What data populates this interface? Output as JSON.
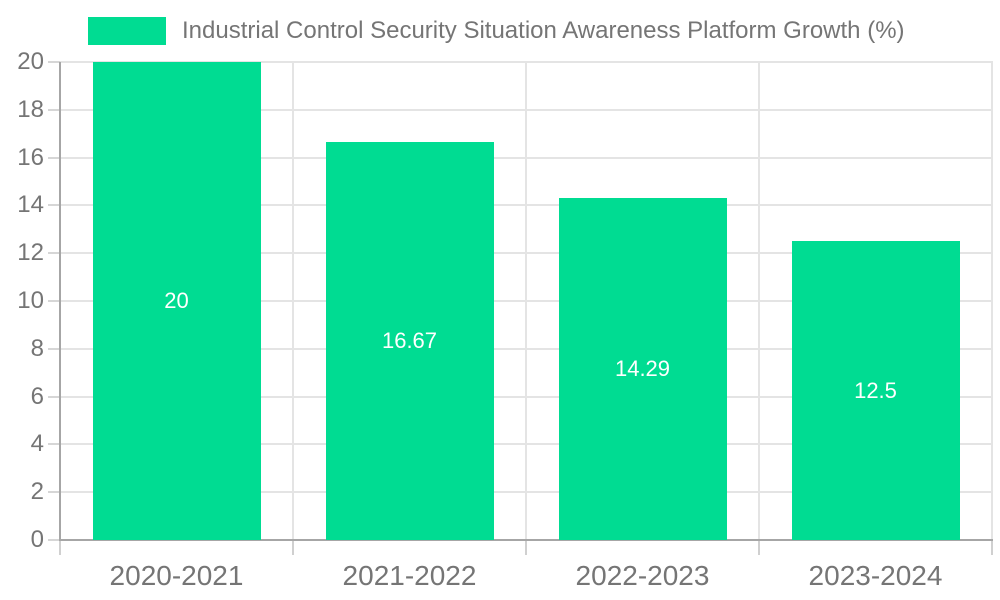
{
  "legend": {
    "label": "Industrial Control Security Situation Awareness Platform Growth (%)",
    "swatch_color": "#00dc92"
  },
  "chart_data": {
    "type": "bar",
    "title": "",
    "xlabel": "",
    "ylabel": "",
    "categories": [
      "2020-2021",
      "2021-2022",
      "2022-2023",
      "2023-2024"
    ],
    "series": [
      {
        "name": "Industrial Control Security Situation Awareness Platform Growth (%)",
        "values": [
          20,
          16.67,
          14.29,
          12.5
        ],
        "data_labels": [
          "20",
          "16.67",
          "14.29",
          "12.5"
        ],
        "color": "#00dc92"
      }
    ],
    "ylim": [
      0,
      20
    ],
    "ytick_step": 2,
    "yticks": [
      0,
      2,
      4,
      6,
      8,
      10,
      12,
      14,
      16,
      18,
      20
    ],
    "grid": true,
    "legend_position": "top-left",
    "colors": {
      "bar": "#00dc92",
      "gridline": "#e4e4e4",
      "axis_line": "#a6a6a6",
      "tick_label": "#757575",
      "data_label": "#ffffff",
      "background": "#ffffff"
    }
  }
}
